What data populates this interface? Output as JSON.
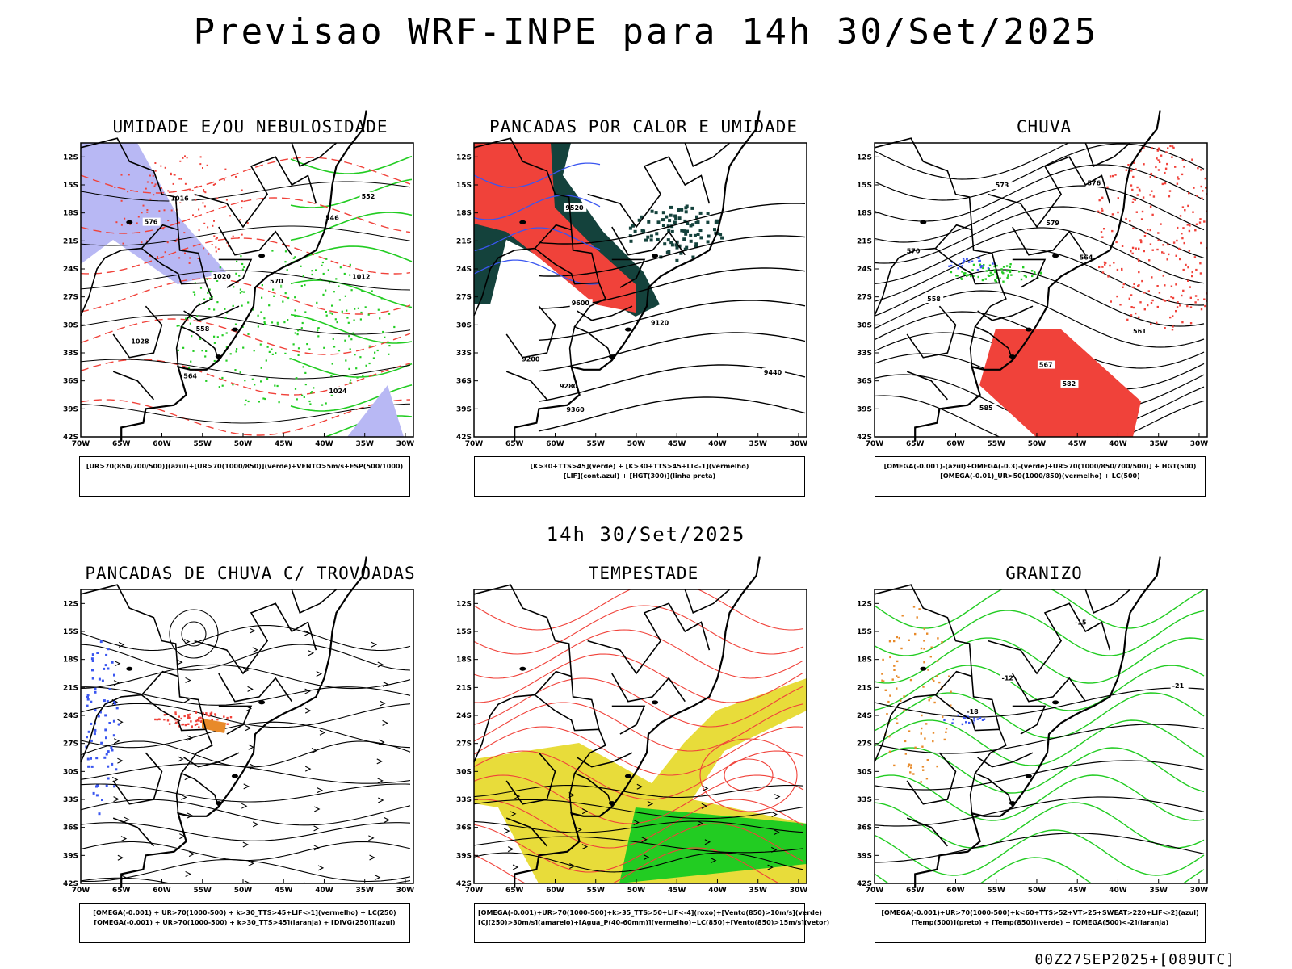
{
  "main_title": "Previsao WRF-INPE  para 14h 30/Set/2025",
  "mid_title": "14h 30/Set/2025",
  "footer": "00Z27SEP2025+[089UTC]",
  "axes": {
    "lat_labels": [
      "12S",
      "15S",
      "18S",
      "21S",
      "24S",
      "27S",
      "30S",
      "33S",
      "36S",
      "39S",
      "42S"
    ],
    "lon_labels": [
      "70W",
      "65W",
      "60W",
      "55W",
      "50W",
      "45W",
      "40W",
      "35W",
      "30W"
    ]
  },
  "colors": {
    "red": "#f0423a",
    "green": "#22cc22",
    "blue": "#3a56f0",
    "lavender": "#b8b8f4",
    "darkgreen": "#14423c",
    "yellow": "#e8dc3a",
    "orange": "#e88a2a",
    "purple": "#b03ab0"
  },
  "panels": [
    {
      "title": "UMIDADE E/OU NEBULOSIDADE",
      "legend": [
        "[UR>70(850/700/500)](azul)+[UR>70(1000/850)](verde)+VENTO>5m/s+ESP(500/1000)"
      ],
      "contour_labels": [
        "1016",
        "1012",
        "1020",
        "1024",
        "1028",
        "576",
        "570",
        "564",
        "558",
        "552",
        "546"
      ]
    },
    {
      "title": "PANCADAS POR CALOR E UMIDADE",
      "legend": [
        "[K>30+TTS>45](verde) + [K>30+TTS>45+LI<-1](vermelho)",
        "[LIF](cont.azul) + [HGT(300)](linha preta)"
      ],
      "contour_labels": [
        "9600",
        "9520",
        "9440",
        "9360",
        "9280",
        "9200",
        "9120"
      ]
    },
    {
      "title": "CHUVA",
      "legend": [
        "[OMEGA(-0.001)-(azul)+OMEGA(-0.3)-(verde)+UR>70(1000/850/700/500)] + HGT(500)",
        "[OMEGA(-0.01)_UR>50(1000/850)(vermelho) + LC(500)"
      ],
      "contour_labels": [
        "585",
        "582",
        "579",
        "576",
        "573",
        "570",
        "567",
        "564",
        "561",
        "558"
      ]
    },
    {
      "title": "PANCADAS DE CHUVA C/ TROVOADAS",
      "legend": [
        "[OMEGA(-0.001) + UR>70(1000-500) + k>30_TTS>45+LIF<-1](vermelho) + LC(250)",
        "[OMEGA(-0.001) + UR>70(1000-500) + k>30_TTS>45](laranja) + [DIVG(250)](azul)"
      ],
      "contour_labels": []
    },
    {
      "title": "TEMPESTADE",
      "legend": [
        "[OMEGA(-0.001)+UR>70(1000-500)+k>35_TTS>50+LIF<-4](roxo)+[Vento(850)>10m/s](verde)",
        "[CJ(250)>30m/s](amarelo)+[Agua_P(40-60mm)](vermelho)+LC(850)+[Vento(850)>15m/s](vetor)"
      ],
      "contour_labels": []
    },
    {
      "title": "GRANIZO",
      "legend": [
        "[OMEGA(-0.001)+UR>70(1000-500)+k<60+TTS>52+VT>25+SWEAT>220+LIF<-2](azul)",
        "[Temp(500)](preto) + [Temp(850)](verde) + [OMEGA(500)<-2](laranja)"
      ],
      "contour_labels": [
        "-12",
        "-15",
        "-18",
        "-21"
      ]
    }
  ]
}
